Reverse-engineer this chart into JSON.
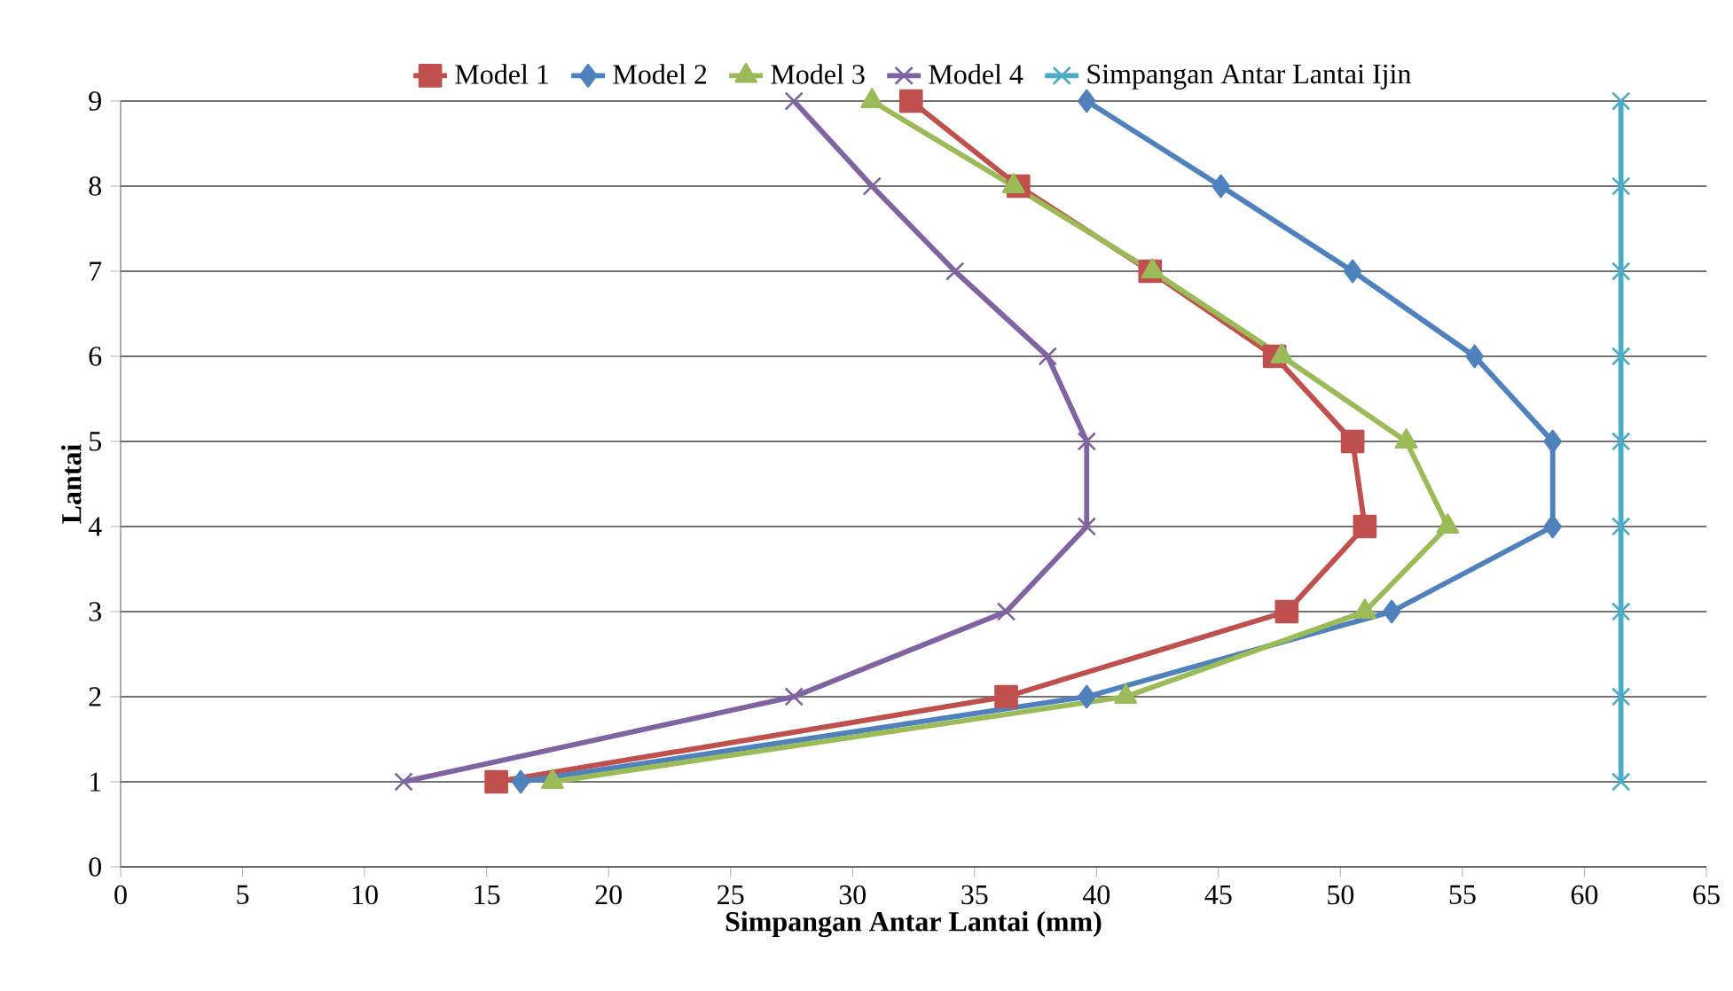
{
  "chart_data": {
    "type": "line",
    "xlabel": "Simpangan  Antar Lantai (mm)",
    "ylabel": "Lantai",
    "xlim": [
      0,
      65
    ],
    "ylim": [
      0,
      9
    ],
    "xticks": [
      0,
      5,
      10,
      15,
      20,
      25,
      30,
      35,
      40,
      45,
      50,
      55,
      60,
      65
    ],
    "yticks": [
      0,
      1,
      2,
      3,
      4,
      5,
      6,
      7,
      8,
      9
    ],
    "grid": "y",
    "legend": "top",
    "line_style": "solid",
    "series": [
      {
        "name": "Model 1",
        "color": "#c0504d",
        "marker": "square",
        "x": [
          15.4,
          36.3,
          47.8,
          51.0,
          50.5,
          47.3,
          42.2,
          36.8,
          32.4
        ],
        "values": [
          1,
          2,
          3,
          4,
          5,
          6,
          7,
          8,
          9
        ]
      },
      {
        "name": "Model 2",
        "color": "#4f81bd",
        "marker": "diamond",
        "x": [
          16.4,
          39.6,
          52.1,
          58.7,
          58.7,
          55.5,
          50.5,
          45.1,
          39.6
        ],
        "values": [
          1,
          2,
          3,
          4,
          5,
          6,
          7,
          8,
          9
        ]
      },
      {
        "name": "Model 3",
        "color": "#9bbb59",
        "marker": "triangle",
        "x": [
          17.7,
          41.2,
          51.0,
          54.4,
          52.7,
          47.6,
          42.3,
          36.6,
          30.8
        ],
        "values": [
          1,
          2,
          3,
          4,
          5,
          6,
          7,
          8,
          9
        ]
      },
      {
        "name": "Model 4",
        "color": "#8064a2",
        "marker": "cross",
        "x": [
          11.6,
          27.6,
          36.3,
          39.6,
          39.6,
          38.0,
          34.2,
          30.8,
          27.6
        ],
        "values": [
          1,
          2,
          3,
          4,
          5,
          6,
          7,
          8,
          9
        ]
      },
      {
        "name": "Simpangan Antar Lantai Ijin",
        "color": "#4bacc6",
        "marker": "cross",
        "x": [
          61.5,
          61.5,
          61.5,
          61.5,
          61.5,
          61.5,
          61.5,
          61.5,
          61.5
        ],
        "values": [
          1,
          2,
          3,
          4,
          5,
          6,
          7,
          8,
          9
        ]
      }
    ]
  }
}
